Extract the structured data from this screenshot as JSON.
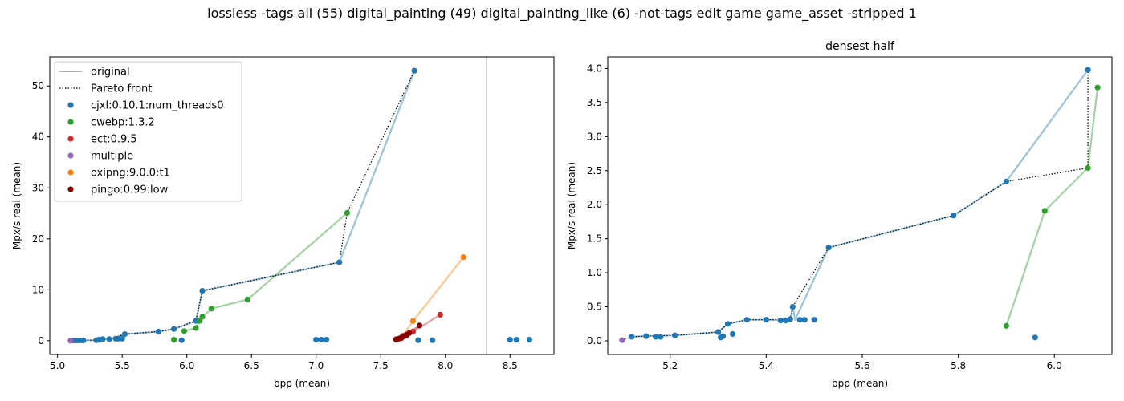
{
  "figure": {
    "title": "lossless -tags all (55) digital_painting (49) digital_painting_like (6) -not-tags edit game game_asset -stripped 1"
  },
  "colors": {
    "cjxl": "#1f77b4",
    "cwebp": "#2ca02c",
    "ect": "#d62728",
    "multiple": "#9467bd",
    "oxipng": "#ff7f0e",
    "pingo": "#8b0000",
    "original": "#808080",
    "pareto": "#000000"
  },
  "chart_data": [
    {
      "type": "scatter",
      "title": "",
      "xlabel": "bpp (mean)",
      "ylabel": "Mpx/s real (mean)",
      "xlim": [
        4.94,
        8.84
      ],
      "ylim": [
        -2.7,
        55.7
      ],
      "xticks": [
        "5.0",
        "5.5",
        "6.0",
        "6.5",
        "7.0",
        "7.5",
        "8.0",
        "8.5"
      ],
      "yticks": [
        "0",
        "10",
        "20",
        "30",
        "40",
        "50"
      ],
      "legend_position": "top-left",
      "legend": {
        "original": "original",
        "pareto": "Pareto front",
        "entries": [
          {
            "key": "cjxl",
            "label": "cjxl:0.10.1:num_threads0"
          },
          {
            "key": "cwebp",
            "label": "cwebp:1.3.2"
          },
          {
            "key": "ect",
            "label": "ect:0.9.5"
          },
          {
            "key": "multiple",
            "label": "multiple"
          },
          {
            "key": "oxipng",
            "label": "oxipng:9.0.0:t1"
          },
          {
            "key": "pingo",
            "label": "pingo:0.99:low"
          }
        ]
      },
      "original_x": 8.32,
      "series": [
        {
          "key": "cjxl",
          "line": [
            [
              5.12,
              0.05
            ],
            [
              5.3,
              0.1
            ],
            [
              5.42,
              0.4
            ],
            [
              5.52,
              1.3
            ],
            [
              5.78,
              1.8
            ],
            [
              5.9,
              2.3
            ],
            [
              6.07,
              3.9
            ],
            [
              6.12,
              9.8
            ],
            [
              7.18,
              15.4
            ],
            [
              7.76,
              53.0
            ]
          ],
          "points": [
            [
              5.12,
              0.05
            ],
            [
              5.14,
              0.05
            ],
            [
              5.16,
              0.06
            ],
            [
              5.18,
              0.07
            ],
            [
              5.2,
              0.06
            ],
            [
              5.3,
              0.1
            ],
            [
              5.32,
              0.2
            ],
            [
              5.35,
              0.3
            ],
            [
              5.4,
              0.3
            ],
            [
              5.45,
              0.4
            ],
            [
              5.47,
              0.4
            ],
            [
              5.5,
              0.4
            ],
            [
              5.52,
              1.3
            ],
            [
              5.78,
              1.8
            ],
            [
              5.9,
              2.3
            ],
            [
              5.96,
              0.1
            ],
            [
              6.07,
              3.9
            ],
            [
              6.12,
              9.8
            ],
            [
              7.0,
              0.2
            ],
            [
              7.04,
              0.2
            ],
            [
              7.08,
              0.2
            ],
            [
              7.18,
              15.4
            ],
            [
              7.76,
              53.0
            ],
            [
              7.79,
              0.1
            ],
            [
              7.9,
              0.1
            ],
            [
              8.5,
              0.2
            ],
            [
              8.55,
              0.2
            ],
            [
              8.65,
              0.2
            ]
          ]
        },
        {
          "key": "cwebp",
          "line": [
            [
              5.98,
              1.9
            ],
            [
              6.07,
              2.5
            ],
            [
              6.1,
              3.9
            ],
            [
              6.12,
              4.7
            ],
            [
              6.19,
              6.3
            ],
            [
              6.47,
              8.1
            ],
            [
              7.24,
              25.1
            ]
          ],
          "points": [
            [
              5.9,
              0.2
            ],
            [
              5.98,
              1.9
            ],
            [
              6.07,
              2.5
            ],
            [
              6.1,
              3.9
            ],
            [
              6.12,
              4.7
            ],
            [
              6.19,
              6.3
            ],
            [
              6.47,
              8.1
            ],
            [
              7.24,
              25.1
            ]
          ]
        },
        {
          "key": "ect",
          "line": [
            [
              7.62,
              0.3
            ],
            [
              7.7,
              1.0
            ],
            [
              7.75,
              1.8
            ],
            [
              7.96,
              5.1
            ]
          ],
          "points": [
            [
              7.62,
              0.3
            ],
            [
              7.66,
              0.5
            ],
            [
              7.7,
              1.0
            ],
            [
              7.75,
              1.8
            ],
            [
              7.96,
              5.1
            ]
          ]
        },
        {
          "key": "multiple",
          "line": [],
          "points": [
            [
              5.1,
              0.0
            ]
          ]
        },
        {
          "key": "oxipng",
          "line": [
            [
              7.64,
              0.4
            ],
            [
              7.67,
              1.0
            ],
            [
              7.75,
              3.9
            ],
            [
              8.14,
              16.4
            ]
          ],
          "points": [
            [
              7.64,
              0.4
            ],
            [
              7.67,
              1.0
            ],
            [
              7.75,
              3.9
            ],
            [
              8.14,
              16.4
            ]
          ]
        },
        {
          "key": "pingo",
          "line": [
            [
              7.62,
              0.2
            ],
            [
              7.65,
              0.5
            ],
            [
              7.68,
              0.9
            ],
            [
              7.72,
              1.5
            ],
            [
              7.8,
              3.0
            ]
          ],
          "points": [
            [
              7.62,
              0.2
            ],
            [
              7.64,
              0.4
            ],
            [
              7.65,
              0.5
            ],
            [
              7.67,
              0.8
            ],
            [
              7.68,
              0.9
            ],
            [
              7.7,
              1.2
            ],
            [
              7.72,
              1.5
            ],
            [
              7.8,
              3.0
            ]
          ]
        }
      ],
      "pareto": [
        [
          5.1,
          0.0
        ],
        [
          5.12,
          0.05
        ],
        [
          5.3,
          0.1
        ],
        [
          5.42,
          0.4
        ],
        [
          5.52,
          1.3
        ],
        [
          5.78,
          1.8
        ],
        [
          5.9,
          2.3
        ],
        [
          6.07,
          3.9
        ],
        [
          6.12,
          9.8
        ],
        [
          7.18,
          15.4
        ],
        [
          7.24,
          25.1
        ],
        [
          7.76,
          53.0
        ]
      ]
    },
    {
      "type": "scatter",
      "title": "densest half",
      "xlabel": "bpp (mean)",
      "ylabel": "Mpx/s real (mean)",
      "xlim": [
        5.07,
        6.12
      ],
      "ylim": [
        -0.2,
        4.17
      ],
      "xticks": [
        "5.2",
        "5.4",
        "5.6",
        "5.8",
        "6.0"
      ],
      "yticks": [
        "0.0",
        "0.5",
        "1.0",
        "1.5",
        "2.0",
        "2.5",
        "3.0",
        "3.5",
        "4.0"
      ],
      "series": [
        {
          "key": "cjxl",
          "line": [
            [
              5.12,
              0.06
            ],
            [
              5.15,
              0.07
            ],
            [
              5.21,
              0.08
            ],
            [
              5.3,
              0.13
            ],
            [
              5.32,
              0.25
            ],
            [
              5.36,
              0.31
            ],
            [
              5.4,
              0.31
            ],
            [
              5.44,
              0.3
            ],
            [
              5.45,
              0.32
            ],
            [
              5.455,
              0.5
            ],
            [
              5.46,
              0.31
            ],
            [
              5.53,
              1.37
            ],
            [
              5.79,
              1.84
            ],
            [
              5.9,
              2.34
            ],
            [
              6.07,
              3.98
            ]
          ],
          "points": [
            [
              5.12,
              0.06
            ],
            [
              5.15,
              0.07
            ],
            [
              5.17,
              0.06
            ],
            [
              5.18,
              0.06
            ],
            [
              5.21,
              0.08
            ],
            [
              5.3,
              0.13
            ],
            [
              5.305,
              0.05
            ],
            [
              5.31,
              0.07
            ],
            [
              5.32,
              0.25
            ],
            [
              5.33,
              0.1
            ],
            [
              5.36,
              0.31
            ],
            [
              5.4,
              0.31
            ],
            [
              5.43,
              0.3
            ],
            [
              5.44,
              0.3
            ],
            [
              5.45,
              0.32
            ],
            [
              5.455,
              0.5
            ],
            [
              5.47,
              0.31
            ],
            [
              5.48,
              0.31
            ],
            [
              5.5,
              0.31
            ],
            [
              5.53,
              1.37
            ],
            [
              5.79,
              1.84
            ],
            [
              5.9,
              2.34
            ],
            [
              5.96,
              0.05
            ],
            [
              6.07,
              3.98
            ]
          ]
        },
        {
          "key": "cwebp",
          "line": [
            [
              5.9,
              0.22
            ],
            [
              5.98,
              1.91
            ],
            [
              6.07,
              2.54
            ],
            [
              6.09,
              3.72
            ]
          ],
          "points": [
            [
              5.9,
              0.22
            ],
            [
              5.98,
              1.91
            ],
            [
              6.07,
              2.54
            ],
            [
              6.09,
              3.72
            ]
          ]
        },
        {
          "key": "multiple",
          "line": [],
          "points": [
            [
              5.1,
              0.01
            ]
          ]
        }
      ],
      "pareto": [
        [
          5.1,
          0.01
        ],
        [
          5.12,
          0.06
        ],
        [
          5.15,
          0.07
        ],
        [
          5.21,
          0.08
        ],
        [
          5.3,
          0.13
        ],
        [
          5.32,
          0.25
        ],
        [
          5.36,
          0.31
        ],
        [
          5.4,
          0.31
        ],
        [
          5.45,
          0.32
        ],
        [
          5.455,
          0.5
        ],
        [
          5.53,
          1.37
        ],
        [
          5.79,
          1.84
        ],
        [
          5.9,
          2.34
        ],
        [
          6.07,
          2.54
        ],
        [
          6.07,
          3.98
        ]
      ]
    }
  ]
}
